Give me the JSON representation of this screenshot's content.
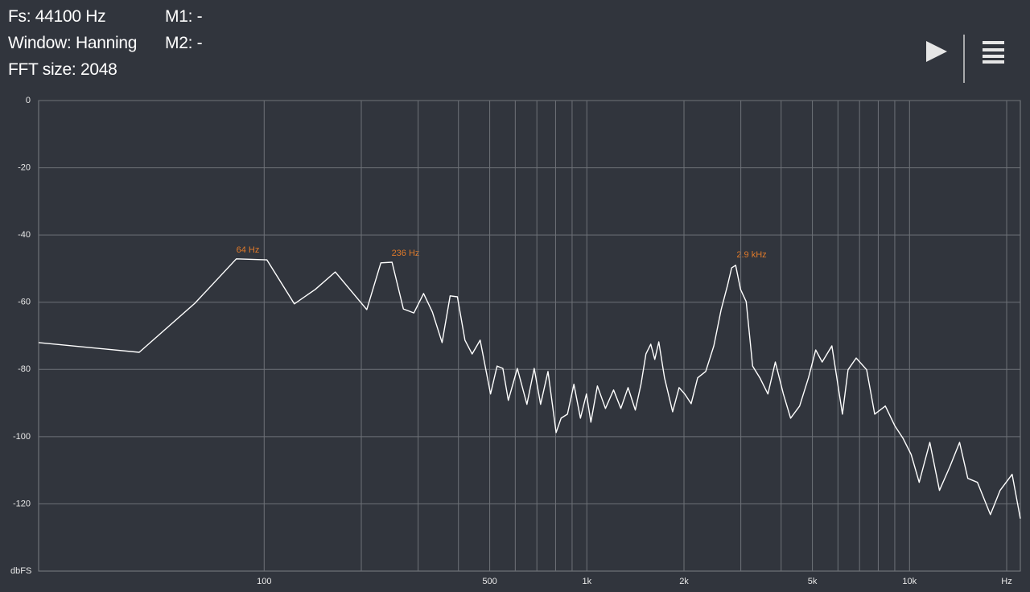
{
  "header": {
    "fs": "Fs: 44100 Hz",
    "window": "Window: Hanning",
    "fft_size": "FFT size: 2048",
    "m1": "M1: -",
    "m2": "M2: -"
  },
  "chart_data": {
    "type": "line",
    "color": "#ffffff",
    "y_label": "dbFS",
    "annotations": [
      "64 Hz",
      "236 Hz",
      "2.9  kHz"
    ],
    "xscale": "log",
    "xlim": [
      20,
      22050
    ],
    "xticks": [
      100,
      500,
      {
        "value": 1000,
        "label": "1k"
      },
      {
        "value": 2000,
        "label": "2k"
      },
      {
        "value": 5000,
        "label": "5k"
      },
      {
        "value": 10000,
        "label": "10k"
      },
      {
        "value": 20000,
        "label": "Hz"
      }
    ],
    "xgrid": [
      200,
      300,
      400,
      600,
      700,
      800,
      900,
      3000,
      4000,
      6000,
      7000,
      8000,
      9000
    ],
    "ylim": [
      -140,
      0
    ],
    "yticks": [
      0,
      -20,
      -40,
      -60,
      -80,
      -100,
      -120
    ],
    "grid": true,
    "x": [
      20,
      41,
      61,
      82,
      102,
      124,
      144,
      166,
      208,
      230,
      249,
      270,
      291,
      312,
      332,
      356,
      377,
      397,
      419,
      441,
      467,
      503,
      527,
      549,
      571,
      609,
      652,
      687,
      719,
      758,
      803,
      832,
      871,
      912,
      955,
      997,
      1029,
      1078,
      1142,
      1210,
      1274,
      1342,
      1413,
      1472,
      1524,
      1578,
      1624,
      1671,
      1740,
      1844,
      1931,
      2010,
      2105,
      2205,
      2335,
      2475,
      2607,
      2729,
      2810,
      2892,
      2994,
      3118,
      3264,
      3437,
      3641,
      3837,
      4064,
      4281,
      4563,
      4861,
      5119,
      5361,
      5745,
      6194,
      6450,
      6833,
      7365,
      7801,
      8412,
      9016,
      9548,
      10116,
      10713,
      11555,
      12381,
      13345,
      14293,
      15153,
      16237,
      17809,
      19084,
      20800,
      22050
    ],
    "values": [
      -72.0,
      -74.9,
      -60.3,
      -47.1,
      -47.4,
      -60.5,
      -56.2,
      -51.0,
      -62.2,
      -48.3,
      -48.1,
      -62.0,
      -63.2,
      -57.4,
      -62.9,
      -72.0,
      -58.1,
      -58.4,
      -71.3,
      -75.4,
      -71.3,
      -87.3,
      -79.0,
      -79.7,
      -89.2,
      -79.7,
      -90.4,
      -79.7,
      -90.4,
      -80.6,
      -98.8,
      -94.5,
      -93.3,
      -84.4,
      -94.5,
      -87.3,
      -95.7,
      -84.9,
      -91.6,
      -86.1,
      -91.6,
      -85.4,
      -92.1,
      -84.4,
      -75.4,
      -72.5,
      -77.0,
      -71.8,
      -82.5,
      -92.6,
      -85.4,
      -87.3,
      -90.2,
      -82.5,
      -80.6,
      -73.0,
      -62.2,
      -55.0,
      -49.8,
      -49.0,
      -56.2,
      -59.8,
      -79.0,
      -82.5,
      -87.3,
      -77.8,
      -87.3,
      -94.5,
      -90.9,
      -82.5,
      -74.2,
      -77.8,
      -73.0,
      -93.3,
      -80.1,
      -76.6,
      -80.1,
      -93.3,
      -90.9,
      -96.9,
      -100.5,
      -105.3,
      -113.6,
      -101.7,
      -116.0,
      -108.9,
      -101.7,
      -112.4,
      -113.6,
      -123.2,
      -116.0,
      -111.2,
      -124.4
    ]
  }
}
